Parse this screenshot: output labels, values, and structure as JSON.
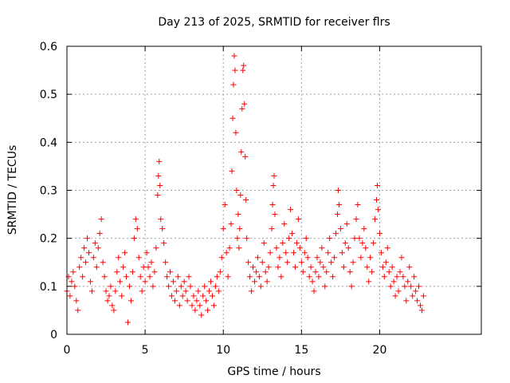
{
  "chart_data": {
    "type": "scatter",
    "title": "Day 213 of 2025, SRMTID for receiver flrs",
    "xlabel": "GPS time / hours",
    "ylabel": "SRMTID / TECUs",
    "xlim": [
      0,
      26.5
    ],
    "ylim": [
      0,
      0.6
    ],
    "xticks": [
      0,
      5,
      10,
      15,
      20
    ],
    "xtick_labels": [
      "0",
      "5",
      "10",
      "15",
      "20"
    ],
    "yticks": [
      0,
      0.1,
      0.2,
      0.3,
      0.4,
      0.5,
      0.6
    ],
    "ytick_labels": [
      "0",
      "0.1",
      "0.2",
      "0.3",
      "0.4",
      "0.5",
      "0.6"
    ],
    "grid": true,
    "marker": "+",
    "color": "#ff0000",
    "series": [
      {
        "name": "SRMTID",
        "points": [
          [
            0.0,
            0.09
          ],
          [
            0.1,
            0.12
          ],
          [
            0.2,
            0.08
          ],
          [
            0.3,
            0.11
          ],
          [
            0.4,
            0.13
          ],
          [
            0.5,
            0.1
          ],
          [
            0.6,
            0.07
          ],
          [
            0.7,
            0.05
          ],
          [
            0.8,
            0.14
          ],
          [
            0.9,
            0.16
          ],
          [
            1.0,
            0.12
          ],
          [
            1.1,
            0.18
          ],
          [
            1.2,
            0.15
          ],
          [
            1.3,
            0.2
          ],
          [
            1.4,
            0.17
          ],
          [
            1.5,
            0.11
          ],
          [
            1.6,
            0.09
          ],
          [
            1.7,
            0.16
          ],
          [
            1.8,
            0.19
          ],
          [
            1.9,
            0.14
          ],
          [
            2.0,
            0.18
          ],
          [
            2.1,
            0.21
          ],
          [
            2.2,
            0.24
          ],
          [
            2.3,
            0.15
          ],
          [
            2.4,
            0.12
          ],
          [
            2.5,
            0.09
          ],
          [
            2.6,
            0.07
          ],
          [
            2.7,
            0.08
          ],
          [
            2.8,
            0.1
          ],
          [
            2.9,
            0.06
          ],
          [
            3.0,
            0.05
          ],
          [
            3.1,
            0.09
          ],
          [
            3.2,
            0.13
          ],
          [
            3.3,
            0.16
          ],
          [
            3.4,
            0.11
          ],
          [
            3.5,
            0.08
          ],
          [
            3.6,
            0.14
          ],
          [
            3.7,
            0.17
          ],
          [
            3.8,
            0.12
          ],
          [
            3.9,
            0.025
          ],
          [
            4.0,
            0.1
          ],
          [
            4.1,
            0.07
          ],
          [
            4.2,
            0.13
          ],
          [
            4.3,
            0.2
          ],
          [
            4.4,
            0.24
          ],
          [
            4.5,
            0.22
          ],
          [
            4.6,
            0.16
          ],
          [
            4.7,
            0.12
          ],
          [
            4.8,
            0.09
          ],
          [
            4.9,
            0.14
          ],
          [
            5.0,
            0.11
          ],
          [
            5.1,
            0.17
          ],
          [
            5.2,
            0.14
          ],
          [
            5.3,
            0.12
          ],
          [
            5.4,
            0.15
          ],
          [
            5.5,
            0.1
          ],
          [
            5.6,
            0.13
          ],
          [
            5.7,
            0.18
          ],
          [
            5.8,
            0.29
          ],
          [
            5.85,
            0.33
          ],
          [
            5.9,
            0.36
          ],
          [
            5.95,
            0.31
          ],
          [
            6.0,
            0.24
          ],
          [
            6.1,
            0.22
          ],
          [
            6.2,
            0.19
          ],
          [
            6.3,
            0.15
          ],
          [
            6.4,
            0.12
          ],
          [
            6.5,
            0.1
          ],
          [
            6.6,
            0.13
          ],
          [
            6.7,
            0.08
          ],
          [
            6.8,
            0.11
          ],
          [
            6.9,
            0.07
          ],
          [
            7.0,
            0.09
          ],
          [
            7.1,
            0.12
          ],
          [
            7.2,
            0.06
          ],
          [
            7.3,
            0.1
          ],
          [
            7.4,
            0.08
          ],
          [
            7.5,
            0.11
          ],
          [
            7.6,
            0.09
          ],
          [
            7.7,
            0.07
          ],
          [
            7.8,
            0.12
          ],
          [
            7.9,
            0.1
          ],
          [
            8.0,
            0.06
          ],
          [
            8.1,
            0.08
          ],
          [
            8.2,
            0.05
          ],
          [
            8.3,
            0.07
          ],
          [
            8.4,
            0.09
          ],
          [
            8.5,
            0.06
          ],
          [
            8.6,
            0.04
          ],
          [
            8.7,
            0.08
          ],
          [
            8.8,
            0.1
          ],
          [
            8.9,
            0.07
          ],
          [
            9.0,
            0.05
          ],
          [
            9.1,
            0.09
          ],
          [
            9.2,
            0.11
          ],
          [
            9.3,
            0.08
          ],
          [
            9.4,
            0.06
          ],
          [
            9.5,
            0.1
          ],
          [
            9.6,
            0.12
          ],
          [
            9.7,
            0.09
          ],
          [
            9.8,
            0.13
          ],
          [
            9.9,
            0.16
          ],
          [
            10.0,
            0.22
          ],
          [
            10.1,
            0.27
          ],
          [
            10.2,
            0.17
          ],
          [
            10.3,
            0.12
          ],
          [
            10.4,
            0.18
          ],
          [
            10.5,
            0.23
          ],
          [
            10.55,
            0.34
          ],
          [
            10.6,
            0.45
          ],
          [
            10.65,
            0.52
          ],
          [
            10.7,
            0.58
          ],
          [
            10.75,
            0.55
          ],
          [
            10.8,
            0.42
          ],
          [
            10.85,
            0.3
          ],
          [
            10.9,
            0.2
          ],
          [
            10.95,
            0.25
          ],
          [
            11.0,
            0.18
          ],
          [
            11.05,
            0.22
          ],
          [
            11.1,
            0.29
          ],
          [
            11.15,
            0.38
          ],
          [
            11.2,
            0.47
          ],
          [
            11.25,
            0.55
          ],
          [
            11.3,
            0.56
          ],
          [
            11.35,
            0.48
          ],
          [
            11.4,
            0.37
          ],
          [
            11.45,
            0.28
          ],
          [
            11.5,
            0.2
          ],
          [
            11.6,
            0.15
          ],
          [
            11.7,
            0.12
          ],
          [
            11.8,
            0.09
          ],
          [
            11.9,
            0.14
          ],
          [
            12.0,
            0.11
          ],
          [
            12.1,
            0.13
          ],
          [
            12.2,
            0.16
          ],
          [
            12.3,
            0.12
          ],
          [
            12.4,
            0.1
          ],
          [
            12.5,
            0.15
          ],
          [
            12.6,
            0.19
          ],
          [
            12.7,
            0.13
          ],
          [
            12.8,
            0.11
          ],
          [
            12.9,
            0.14
          ],
          [
            13.0,
            0.17
          ],
          [
            13.1,
            0.22
          ],
          [
            13.15,
            0.27
          ],
          [
            13.2,
            0.31
          ],
          [
            13.25,
            0.33
          ],
          [
            13.3,
            0.25
          ],
          [
            13.4,
            0.18
          ],
          [
            13.5,
            0.14
          ],
          [
            13.6,
            0.16
          ],
          [
            13.7,
            0.12
          ],
          [
            13.8,
            0.19
          ],
          [
            13.9,
            0.23
          ],
          [
            14.0,
            0.17
          ],
          [
            14.1,
            0.15
          ],
          [
            14.2,
            0.2
          ],
          [
            14.3,
            0.26
          ],
          [
            14.4,
            0.21
          ],
          [
            14.5,
            0.17
          ],
          [
            14.6,
            0.14
          ],
          [
            14.7,
            0.19
          ],
          [
            14.8,
            0.24
          ],
          [
            14.9,
            0.18
          ],
          [
            15.0,
            0.15
          ],
          [
            15.1,
            0.13
          ],
          [
            15.2,
            0.17
          ],
          [
            15.3,
            0.2
          ],
          [
            15.4,
            0.16
          ],
          [
            15.5,
            0.12
          ],
          [
            15.6,
            0.14
          ],
          [
            15.7,
            0.11
          ],
          [
            15.8,
            0.09
          ],
          [
            15.9,
            0.13
          ],
          [
            16.0,
            0.16
          ],
          [
            16.1,
            0.12
          ],
          [
            16.2,
            0.15
          ],
          [
            16.3,
            0.18
          ],
          [
            16.4,
            0.14
          ],
          [
            16.5,
            0.1
          ],
          [
            16.6,
            0.13
          ],
          [
            16.7,
            0.17
          ],
          [
            16.8,
            0.2
          ],
          [
            16.9,
            0.15
          ],
          [
            17.0,
            0.12
          ],
          [
            17.1,
            0.16
          ],
          [
            17.2,
            0.21
          ],
          [
            17.3,
            0.25
          ],
          [
            17.35,
            0.3
          ],
          [
            17.4,
            0.27
          ],
          [
            17.5,
            0.22
          ],
          [
            17.6,
            0.17
          ],
          [
            17.7,
            0.14
          ],
          [
            17.8,
            0.19
          ],
          [
            17.9,
            0.23
          ],
          [
            18.0,
            0.18
          ],
          [
            18.1,
            0.13
          ],
          [
            18.2,
            0.1
          ],
          [
            18.3,
            0.15
          ],
          [
            18.4,
            0.2
          ],
          [
            18.5,
            0.24
          ],
          [
            18.6,
            0.27
          ],
          [
            18.7,
            0.2
          ],
          [
            18.8,
            0.16
          ],
          [
            18.9,
            0.19
          ],
          [
            19.0,
            0.22
          ],
          [
            19.1,
            0.18
          ],
          [
            19.2,
            0.14
          ],
          [
            19.3,
            0.11
          ],
          [
            19.4,
            0.16
          ],
          [
            19.5,
            0.13
          ],
          [
            19.6,
            0.19
          ],
          [
            19.7,
            0.24
          ],
          [
            19.8,
            0.28
          ],
          [
            19.85,
            0.31
          ],
          [
            19.9,
            0.26
          ],
          [
            20.0,
            0.21
          ],
          [
            20.1,
            0.17
          ],
          [
            20.2,
            0.14
          ],
          [
            20.3,
            0.12
          ],
          [
            20.4,
            0.15
          ],
          [
            20.5,
            0.18
          ],
          [
            20.6,
            0.13
          ],
          [
            20.7,
            0.1
          ],
          [
            20.8,
            0.14
          ],
          [
            20.9,
            0.11
          ],
          [
            21.0,
            0.08
          ],
          [
            21.1,
            0.12
          ],
          [
            21.2,
            0.09
          ],
          [
            21.3,
            0.13
          ],
          [
            21.4,
            0.16
          ],
          [
            21.5,
            0.12
          ],
          [
            21.6,
            0.1
          ],
          [
            21.7,
            0.07
          ],
          [
            21.8,
            0.11
          ],
          [
            21.9,
            0.14
          ],
          [
            22.0,
            0.1
          ],
          [
            22.1,
            0.08
          ],
          [
            22.2,
            0.12
          ],
          [
            22.3,
            0.09
          ],
          [
            22.4,
            0.07
          ],
          [
            22.5,
            0.1
          ],
          [
            22.6,
            0.06
          ],
          [
            22.7,
            0.05
          ],
          [
            22.8,
            0.08
          ]
        ]
      }
    ]
  }
}
